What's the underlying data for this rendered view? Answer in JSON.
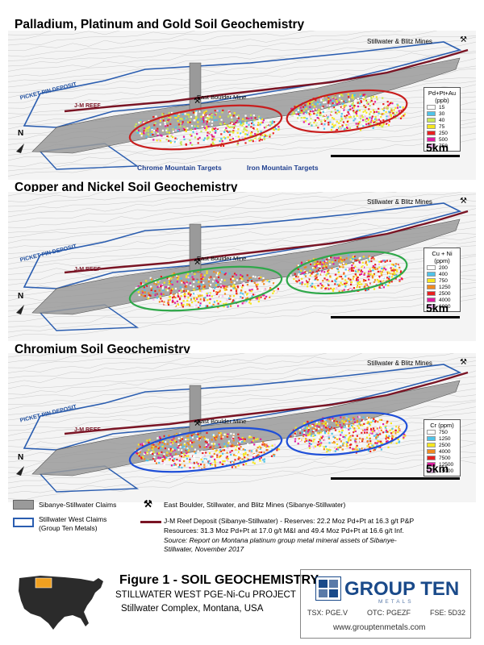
{
  "panels": [
    {
      "title": "Palladium, Platinum and Gold Soil Geochemistry",
      "legend_title_line1": "Pd+Pt+Au",
      "legend_title_line2": "(ppb)",
      "legend_items": [
        {
          "value": "15",
          "color": "#ffffff"
        },
        {
          "value": "30",
          "color": "#4fc3e8"
        },
        {
          "value": "40",
          "color": "#c8e65a"
        },
        {
          "value": "75",
          "color": "#f5e620"
        },
        {
          "value": "250",
          "color": "#e82020"
        },
        {
          "value": "500",
          "color": "#e01ca0"
        },
        {
          "value": "750",
          "color": "#f5b8f0"
        }
      ],
      "ellipse_color": "#c81e1e"
    },
    {
      "title": "Copper and Nickel Soil Geochemistry",
      "legend_title_line1": "Cu + Ni",
      "legend_title_line2": "(ppm)",
      "legend_items": [
        {
          "value": "200",
          "color": "#ffffff"
        },
        {
          "value": "400",
          "color": "#4fc3e8"
        },
        {
          "value": "750",
          "color": "#f5e620"
        },
        {
          "value": "1250",
          "color": "#f08a20"
        },
        {
          "value": "2500",
          "color": "#e82020"
        },
        {
          "value": "4000",
          "color": "#e01ca0"
        },
        {
          "value": "6000",
          "color": "#f5b8f0"
        }
      ],
      "ellipse_color": "#2fa84a"
    },
    {
      "title": "Chromium  Soil Geochemistry",
      "legend_title_line1": "Cr (ppm)",
      "legend_title_line2": "",
      "legend_items": [
        {
          "value": "750",
          "color": "#ffffff"
        },
        {
          "value": "1250",
          "color": "#4fc3e8"
        },
        {
          "value": "2500",
          "color": "#f5e620"
        },
        {
          "value": "4000",
          "color": "#f08a20"
        },
        {
          "value": "7500",
          "color": "#e82020"
        },
        {
          "value": "12500",
          "color": "#e01ca0"
        },
        {
          "value": "15000",
          "color": "#f5b8f0"
        }
      ],
      "ellipse_color": "#1f4fd8"
    }
  ],
  "map_labels": {
    "mines": "Stillwater & Blitz Mines",
    "picket_pin": "PICKET PIN DEPOSIT",
    "jm_reef": "J-M REEF",
    "east_boulder": "East Boulder Mine",
    "scale": "5km",
    "north": "N"
  },
  "targets": {
    "chrome": "Chrome Mountain Targets",
    "iron": "Iron Mountain Targets"
  },
  "legend": {
    "sibanye": "Sibanye-Stillwater Claims",
    "stillwater_west_line1": "Stillwater West Claims",
    "stillwater_west_line2": "(Group Ten Metals)",
    "mines": "East Boulder, Stillwater, and Blitz Mines (Sibanye-Stillwater)",
    "reef_line1": "J-M Reef Deposit (Sibanye-Stillwater) - Reserves: 22.2 Moz Pd+Pt at 16.3 g/t P&P",
    "reef_line2": "Resources:  31.3 Moz Pd+Pt at 17.0 g/t M&I and 49.4 Moz Pd+Pt at 16.6 g/t Inf.",
    "source_line1": "Source:  Report on Montana platinum group metal mineral assets of Sibanye-",
    "source_line2": "Stillwater, November 2017"
  },
  "figure": {
    "title": "Figure 1 - SOIL GEOCHEMISTRY",
    "line1": "STILLWATER WEST PGE-Ni-Cu PROJECT",
    "line2": "Stillwater Complex, Montana, USA"
  },
  "logo": {
    "name": "GROUP TEN",
    "sub": "METALS",
    "tsx": "TSX: PGE.V",
    "otc": "OTC: PGEZF",
    "fse": "FSE: 5D32",
    "web": "www.grouptenmetals.com"
  },
  "colors": {
    "claims_gray": "#9a9a9a",
    "claims_blue": "#2a5db0",
    "reef": "#7a1424"
  }
}
